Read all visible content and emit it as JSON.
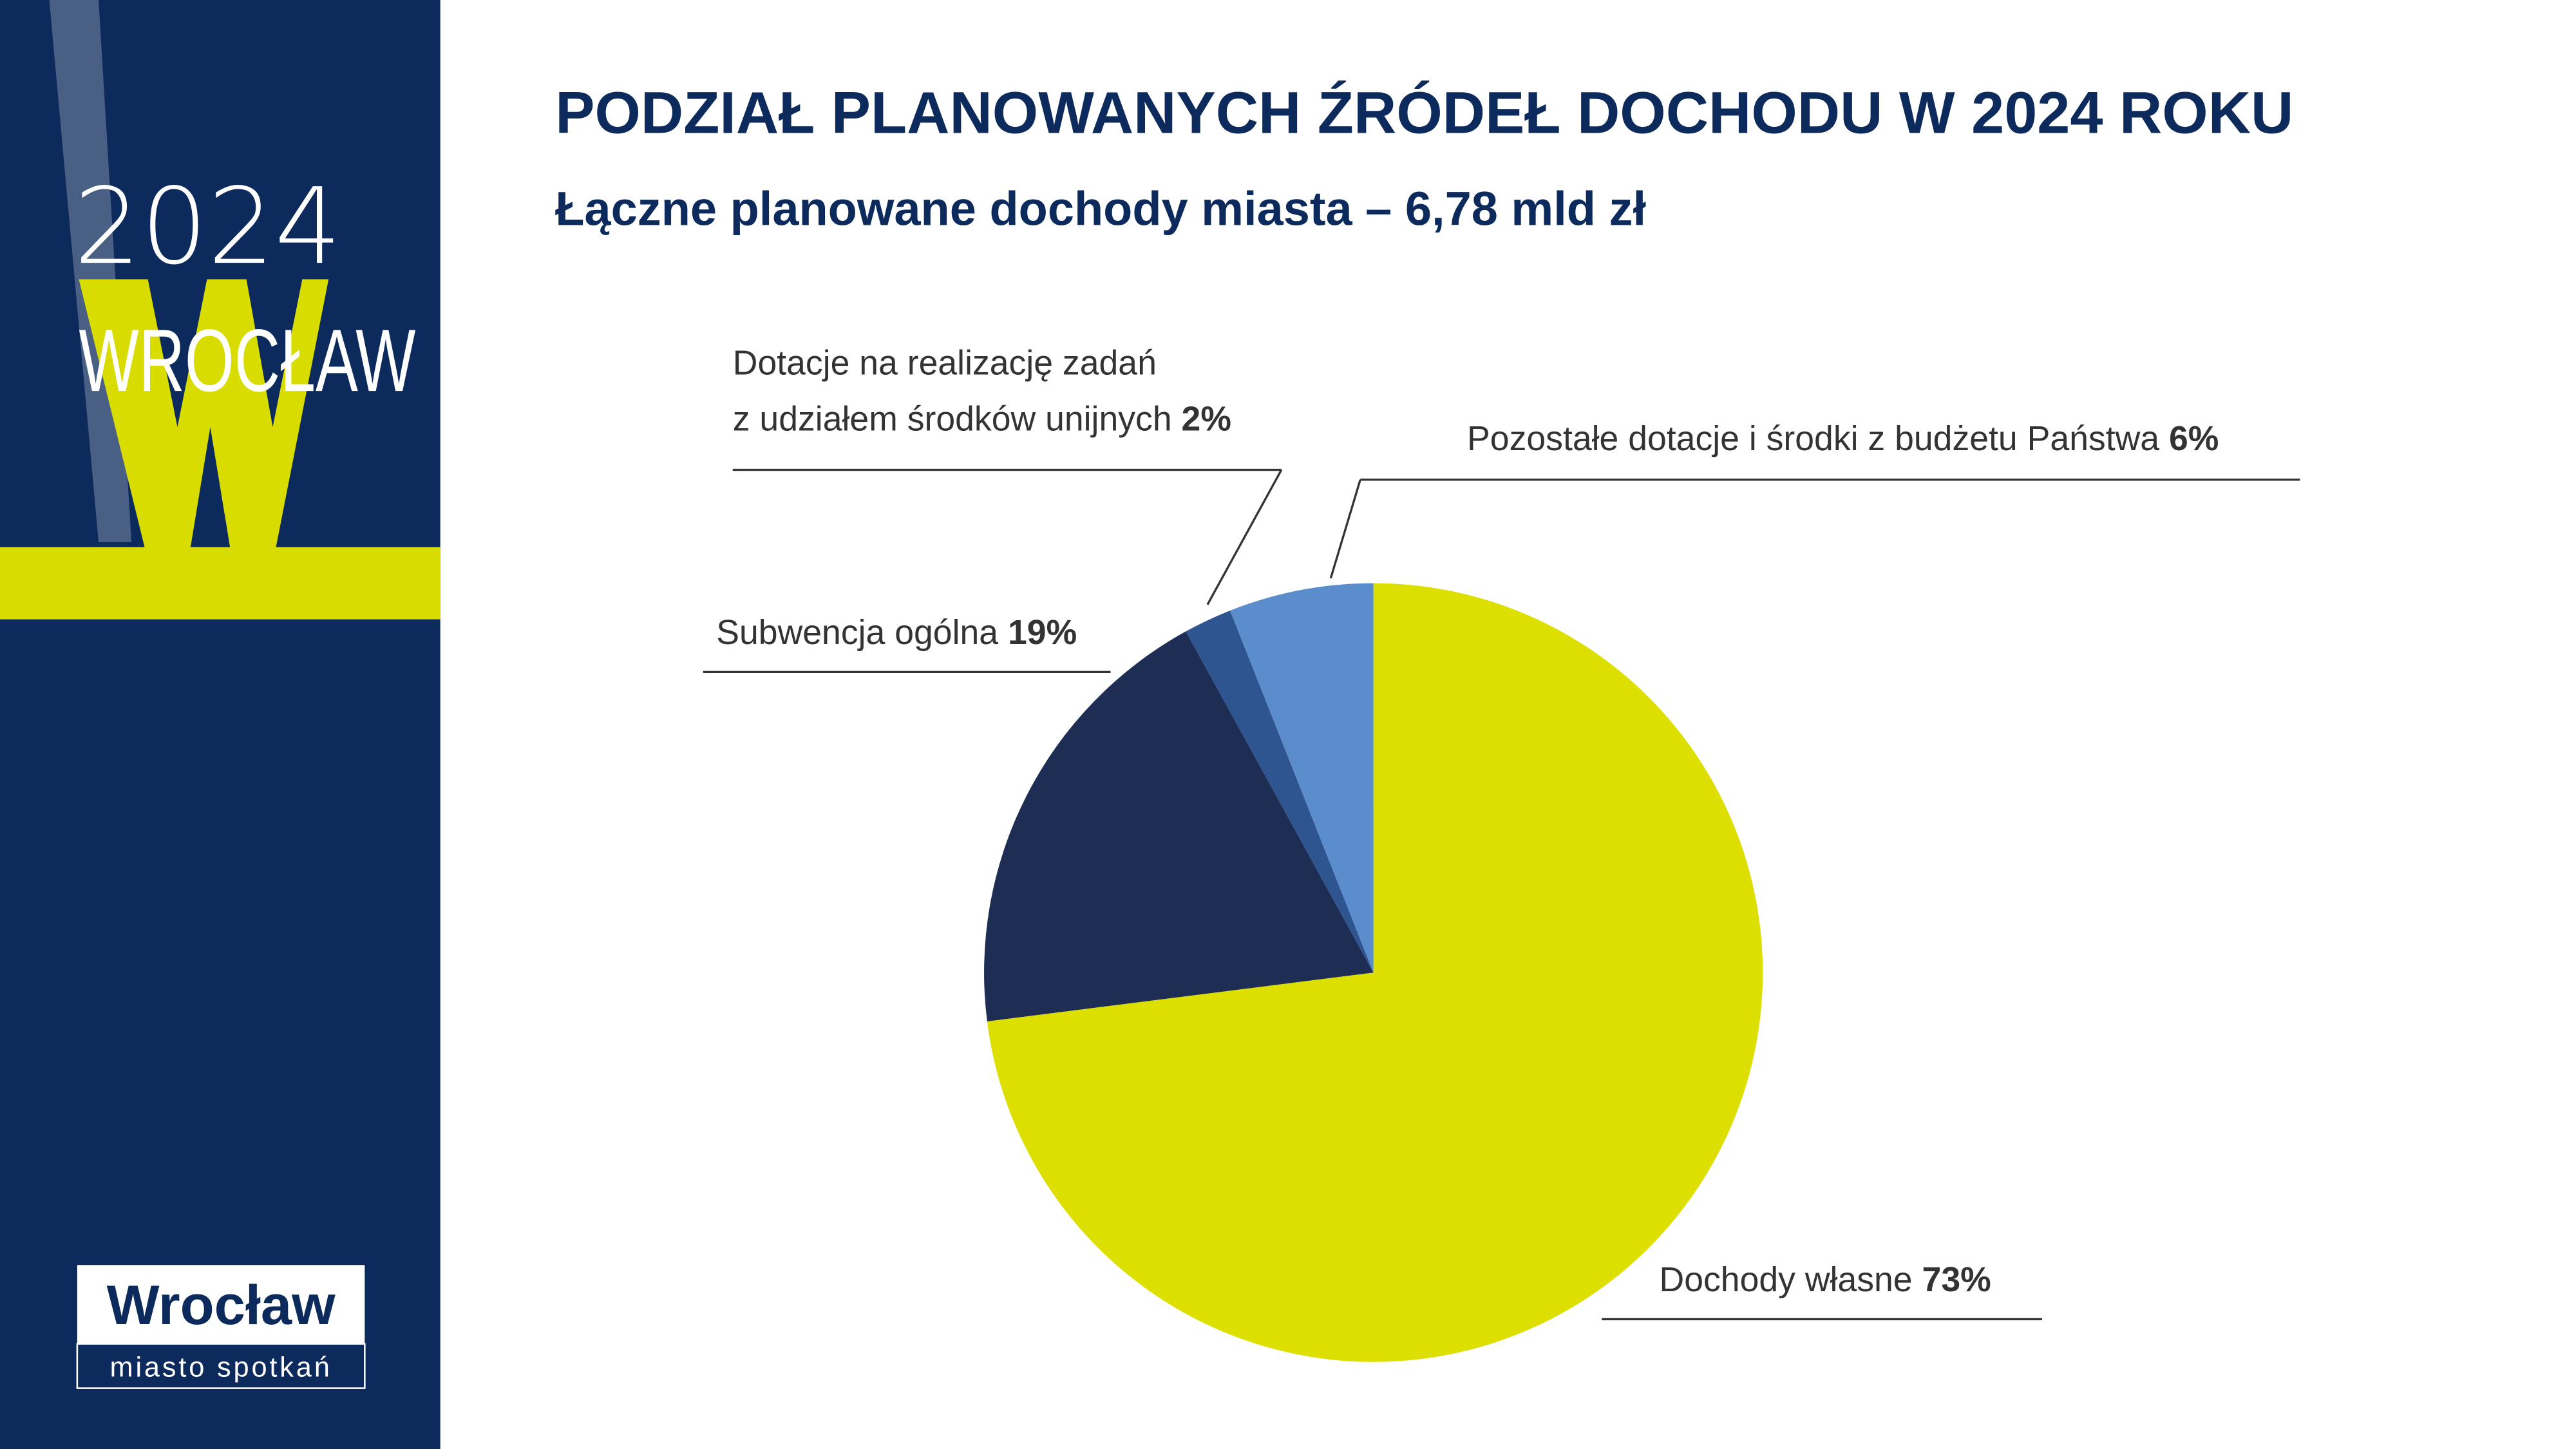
{
  "sidebar": {
    "year": "2024",
    "city": "WROCŁAW",
    "logo": "Wrocław",
    "tagline": "miasto spotkań"
  },
  "chart_data": {
    "type": "pie",
    "title": "PODZIAŁ PLANOWANYCH ŹRÓDEŁ DOCHODU W 2024 ROKU",
    "subtitle": "Łączne planowane dochody miasta – 6,78 mld zł",
    "categories": [
      "Dochody własne",
      "Subwencja ogólna",
      "Dotacje na realizację zadań\nz udziałem środków unijnych",
      "Pozostałe dotacje i środki z budżetu Państwa"
    ],
    "values": [
      73,
      19,
      2,
      6
    ],
    "value_labels": [
      "73%",
      "19%",
      "2%",
      "6%"
    ],
    "colors": [
      "#dcdf00",
      "#1e2d54",
      "#2f5590",
      "#5b8ccc"
    ]
  }
}
